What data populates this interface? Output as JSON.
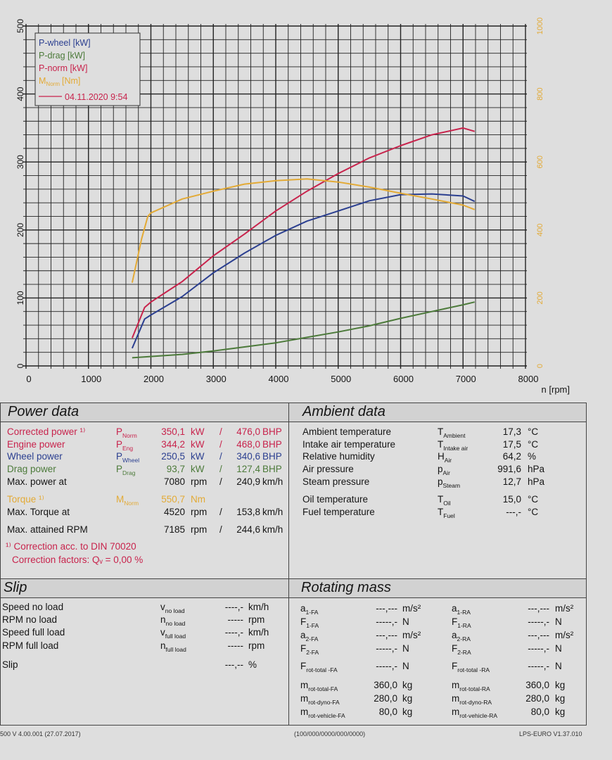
{
  "chart_data": {
    "type": "line",
    "xlabel": "n [rpm]",
    "xlim": [
      0,
      8000
    ],
    "x_ticks": [
      "0",
      "1000",
      "2000",
      "3000",
      "4000",
      "5000",
      "6000",
      "7000",
      "8000"
    ],
    "ylim_left": [
      0,
      500
    ],
    "y_ticks_left": [
      "0",
      "100",
      "200",
      "300",
      "400",
      "500"
    ],
    "ylim_right": [
      0,
      1000
    ],
    "y_ticks_right": [
      "0",
      "200",
      "400",
      "600",
      "800",
      "1000"
    ],
    "grid": true,
    "legend_position": "top-left",
    "legend": {
      "date_entry": "04.11.2020 9:54"
    },
    "series": [
      {
        "name": "P-wheel [kW]",
        "color": "#2b3f90",
        "axis": "left",
        "x": [
          1700,
          1900,
          2000,
          2500,
          3000,
          3500,
          4000,
          4500,
          5000,
          5500,
          6000,
          6500,
          7000,
          7185
        ],
        "y": [
          26,
          69,
          75,
          102,
          137,
          166,
          192,
          213,
          228,
          243,
          252,
          253,
          250,
          242
        ]
      },
      {
        "name": "P-drag [kW]",
        "color": "#4c7a3a",
        "axis": "left",
        "x": [
          1700,
          2500,
          3000,
          3500,
          4000,
          4500,
          5000,
          5500,
          6000,
          6500,
          7000,
          7185
        ],
        "y": [
          12,
          17,
          22,
          28,
          34,
          42,
          50,
          59,
          70,
          80,
          90,
          94
        ]
      },
      {
        "name": "P-norm [kW]",
        "color": "#c8234c",
        "axis": "left",
        "x": [
          1700,
          1900,
          2000,
          2500,
          3000,
          3500,
          4000,
          4500,
          5000,
          5500,
          6000,
          6500,
          7000,
          7185
        ],
        "y": [
          41,
          86,
          94,
          124,
          162,
          194,
          228,
          257,
          283,
          306,
          324,
          340,
          350,
          345
        ]
      },
      {
        "name": "M",
        "name_sub": "Norm",
        "name_unit": "[Nm]",
        "color": "#e3aa35",
        "axis": "right",
        "x": [
          1700,
          1850,
          1950,
          2000,
          2500,
          3000,
          3500,
          4000,
          4500,
          5000,
          5500,
          6000,
          6500,
          7000,
          7185
        ],
        "y": [
          245,
          373,
          440,
          450,
          491,
          514,
          535,
          545,
          550,
          541,
          526,
          508,
          491,
          473,
          460
        ]
      }
    ]
  },
  "power": {
    "title": "Power data",
    "rows": [
      {
        "label": "Corrected power ¹⁾",
        "sym": "P",
        "sub": "Norm",
        "value": "350,1",
        "unit": "kW",
        "slash": "/",
        "value2": "476,0",
        "unit2": "BHP",
        "color": "#c8234c"
      },
      {
        "label": "Engine power",
        "sym": "P",
        "sub": "Eng",
        "value": "344,2",
        "unit": "kW",
        "slash": "/",
        "value2": "468,0",
        "unit2": "BHP",
        "color": "#c8234c"
      },
      {
        "label": "Wheel power",
        "sym": "P",
        "sub": "Wheel",
        "value": "250,5",
        "unit": "kW",
        "slash": "/",
        "value2": "340,6",
        "unit2": "BHP",
        "color": "#2b3f90"
      },
      {
        "label": "Drag power",
        "sym": "P",
        "sub": "Drag",
        "value": "93,7",
        "unit": "kW",
        "slash": "/",
        "value2": "127,4",
        "unit2": "BHP",
        "color": "#4c7a3a"
      },
      {
        "label": "Max. power at",
        "value": "7080",
        "unit": "rpm",
        "slash": "/",
        "value2": "240,9",
        "unit2": "km/h",
        "color": "#151515"
      },
      {
        "label": "Torque ¹⁾",
        "sym": "M",
        "sub": "Norm",
        "value": "550,7",
        "unit": "Nm",
        "color": "#e3aa35"
      },
      {
        "label": "Max. Torque at",
        "value": "4520",
        "unit": "rpm",
        "slash": "/",
        "value2": "153,8",
        "unit2": "km/h",
        "color": "#151515"
      },
      {
        "label": "Max. attained RPM",
        "value": "7185",
        "unit": "rpm",
        "slash": "/",
        "value2": "244,6",
        "unit2": "km/h",
        "color": "#151515"
      }
    ],
    "footnote1": "¹⁾ Correction acc. to DIN 70020",
    "footnote2": "Correction factors: Qᵥ =   0,00 %"
  },
  "ambient": {
    "title": "Ambient data",
    "rows": [
      {
        "label": "Ambient temperature",
        "sym": "T",
        "sub": "Ambient",
        "value": "17,3",
        "unit": "°C"
      },
      {
        "label": "Intake air temperature",
        "sym": "T",
        "sub": "Intake air",
        "value": "17,5",
        "unit": "°C"
      },
      {
        "label": "Relative humidity",
        "sym": "H",
        "sub": "Air",
        "value": "64,2",
        "unit": "%"
      },
      {
        "label": "Air pressure",
        "sym": "p",
        "sub": "Air",
        "value": "991,6",
        "unit": "hPa"
      },
      {
        "label": "Steam pressure",
        "sym": "p",
        "sub": "Steam",
        "value": "12,7",
        "unit": "hPa"
      },
      {
        "label": "Oil temperature",
        "sym": "T",
        "sub": "Oil",
        "value": "15,0",
        "unit": "°C"
      },
      {
        "label": "Fuel temperature",
        "sym": "T",
        "sub": "Fuel",
        "value": "---,-",
        "unit": "°C"
      }
    ]
  },
  "slip": {
    "title": "Slip",
    "rows": [
      {
        "label": "Speed no load",
        "sym": "v",
        "sub": "no load",
        "value": "----,-",
        "unit": "km/h"
      },
      {
        "label": "RPM no load",
        "sym": "n",
        "sub": "no load",
        "value": "-----",
        "unit": "rpm"
      },
      {
        "label": "Speed full load",
        "sym": "v",
        "sub": "full load",
        "value": "----,-",
        "unit": "km/h"
      },
      {
        "label": "RPM full load",
        "sym": "n",
        "sub": "full load",
        "value": "-----",
        "unit": "rpm"
      },
      {
        "label": "Slip",
        "value": "---,--",
        "unit": "%"
      }
    ]
  },
  "rotating": {
    "title": "Rotating mass",
    "rows": [
      {
        "sym": "a",
        "sub": "1-FA",
        "value": "---,---",
        "unit": "m/s²",
        "sym2": "a",
        "sub2": "1-RA",
        "value2": "---,---",
        "unit2": "m/s²"
      },
      {
        "sym": "F",
        "sub": "1-FA",
        "value": "-----,-",
        "unit": "N",
        "sym2": "F",
        "sub2": "1-RA",
        "value2": "-----,-",
        "unit2": "N"
      },
      {
        "sym": "a",
        "sub": "2-FA",
        "value": "---,---",
        "unit": "m/s²",
        "sym2": "a",
        "sub2": "2-RA",
        "value2": "---,---",
        "unit2": "m/s²"
      },
      {
        "sym": "F",
        "sub": "2-FA",
        "value": "-----,-",
        "unit": "N",
        "sym2": "F",
        "sub2": "2-RA",
        "value2": "-----,-",
        "unit2": "N"
      },
      {
        "sym": "F",
        "sub": "rot-total -FA",
        "value": "-----,-",
        "unit": "N",
        "sym2": "F",
        "sub2": "rot-total -RA",
        "value2": "-----,-",
        "unit2": "N"
      },
      {
        "sym": "m",
        "sub": "rot-total-FA",
        "value": "360,0",
        "unit": "kg",
        "sym2": "m",
        "sub2": "rot-total-RA",
        "value2": "360,0",
        "unit2": "kg"
      },
      {
        "sym": "m",
        "sub": "rot-dyno-FA",
        "value": "280,0",
        "unit": "kg",
        "sym2": "m",
        "sub2": "rot-dyno-RA",
        "value2": "280,0",
        "unit2": "kg"
      },
      {
        "sym": "m",
        "sub": "rot-vehicle-FA",
        "value": "80,0",
        "unit": "kg",
        "sym2": "m",
        "sub2": "rot-vehicle-RA",
        "value2": "80,0",
        "unit2": "kg"
      }
    ]
  },
  "footer": {
    "left": "500 V 4.00.001 (27.07.2017)",
    "center": "(100/000/0000/000/0000)",
    "right": "LPS-EURO V1.37.010"
  }
}
